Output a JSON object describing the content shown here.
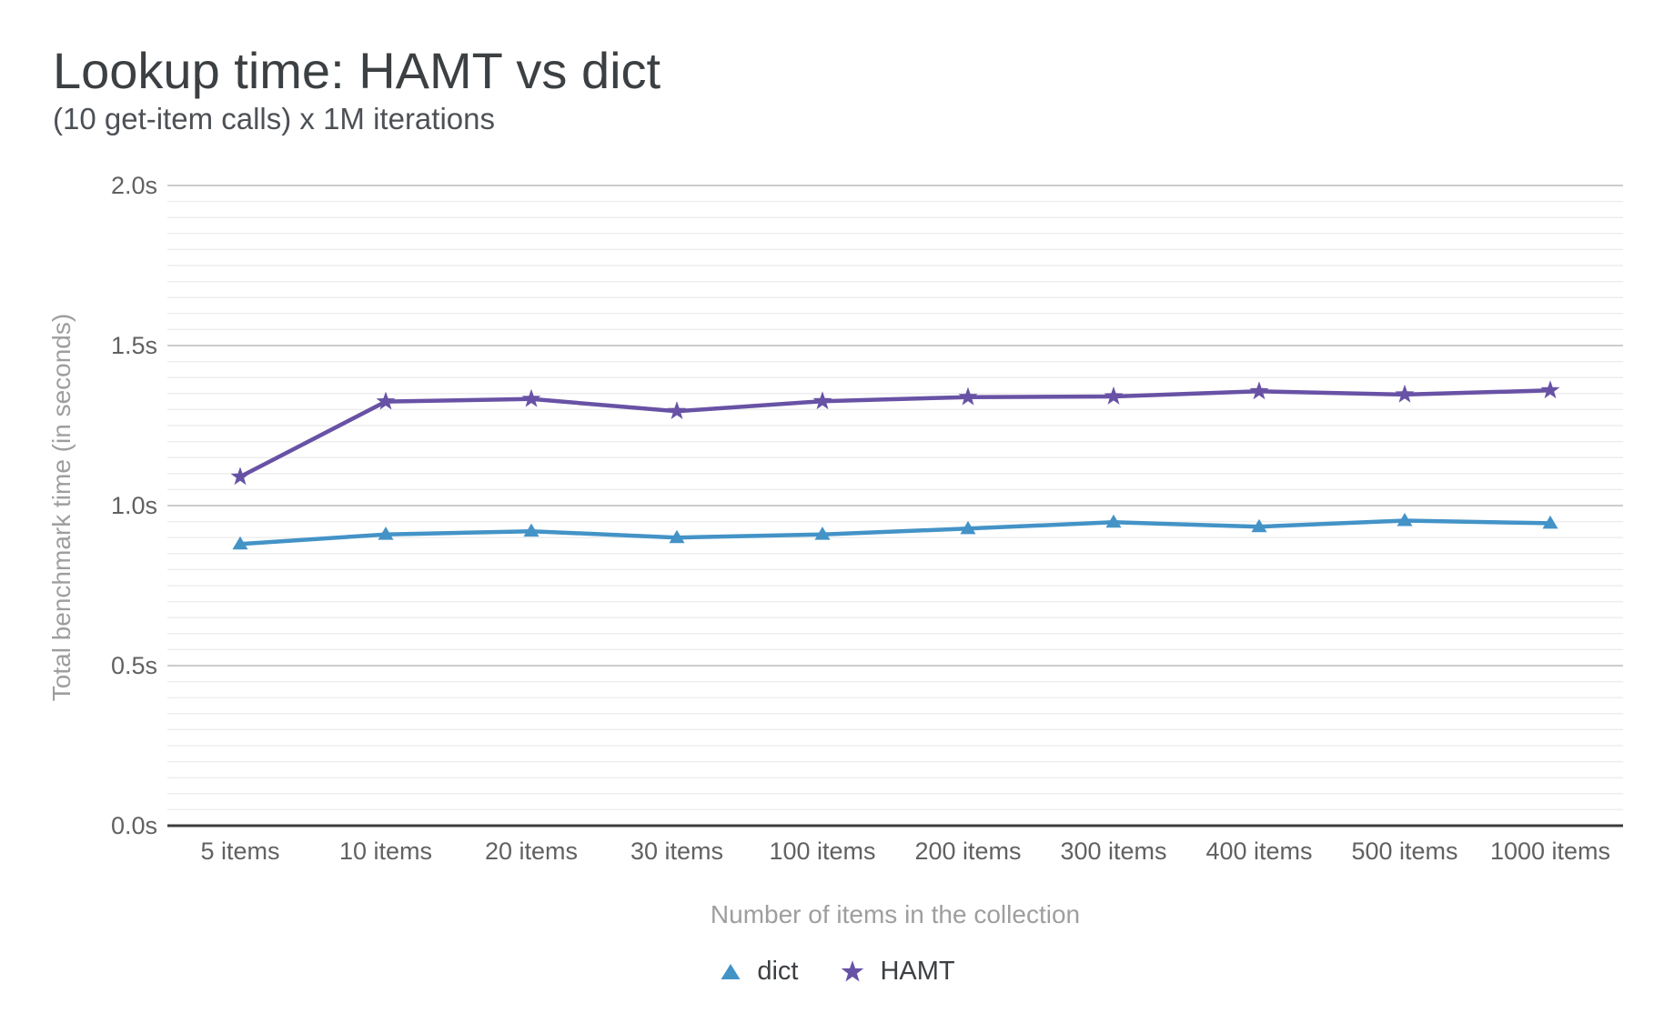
{
  "header": {
    "title": "Lookup time: HAMT vs dict",
    "subtitle": "(10 get-item calls) x 1M iterations"
  },
  "legend": [
    {
      "label": "dict",
      "marker": "triangle-icon",
      "color": "#4393c7"
    },
    {
      "label": "HAMT",
      "marker": "star-icon",
      "color": "#6852a5"
    }
  ],
  "colors": {
    "dict_series": "#4393c7",
    "hamt_series": "#6852a5",
    "grid_major": "#cccccc",
    "grid_minor": "#eeeeee",
    "axis_baseline": "#3c3c3c",
    "tick_text": "#616161",
    "axis_title_text": "#9e9e9e",
    "title_text": "#3c4043",
    "legend_text": "#3c4043",
    "background": "#ffffff"
  },
  "chart_data": {
    "type": "line",
    "title": "Lookup time: HAMT vs dict",
    "subtitle": "(10 get-item calls) x 1M iterations",
    "categories": [
      "5 items",
      "10 items",
      "20 items",
      "30 items",
      "100 items",
      "200 items",
      "300 items",
      "400 items",
      "500 items",
      "1000 items"
    ],
    "series": [
      {
        "name": "dict",
        "marker": "triangle",
        "color": "#4393c7",
        "values": [
          0.88,
          0.91,
          0.92,
          0.9,
          0.91,
          0.928,
          0.948,
          0.934,
          0.953,
          0.945
        ]
      },
      {
        "name": "HAMT",
        "marker": "star",
        "color": "#6852a5",
        "values": [
          1.09,
          1.325,
          1.333,
          1.295,
          1.326,
          1.339,
          1.341,
          1.357,
          1.347,
          1.36
        ]
      }
    ],
    "xlabel": "Number of items in the collection",
    "ylabel": "Total benchmark time (in seconds)",
    "ylim": [
      0,
      2.0
    ],
    "ytick_step": 0.5,
    "ytick_labels": [
      "0.0s",
      "0.5s",
      "1.0s",
      "1.5s",
      "2.0s"
    ],
    "minor_grid_step": 0.05,
    "grid": true,
    "legend_position": "bottom"
  }
}
